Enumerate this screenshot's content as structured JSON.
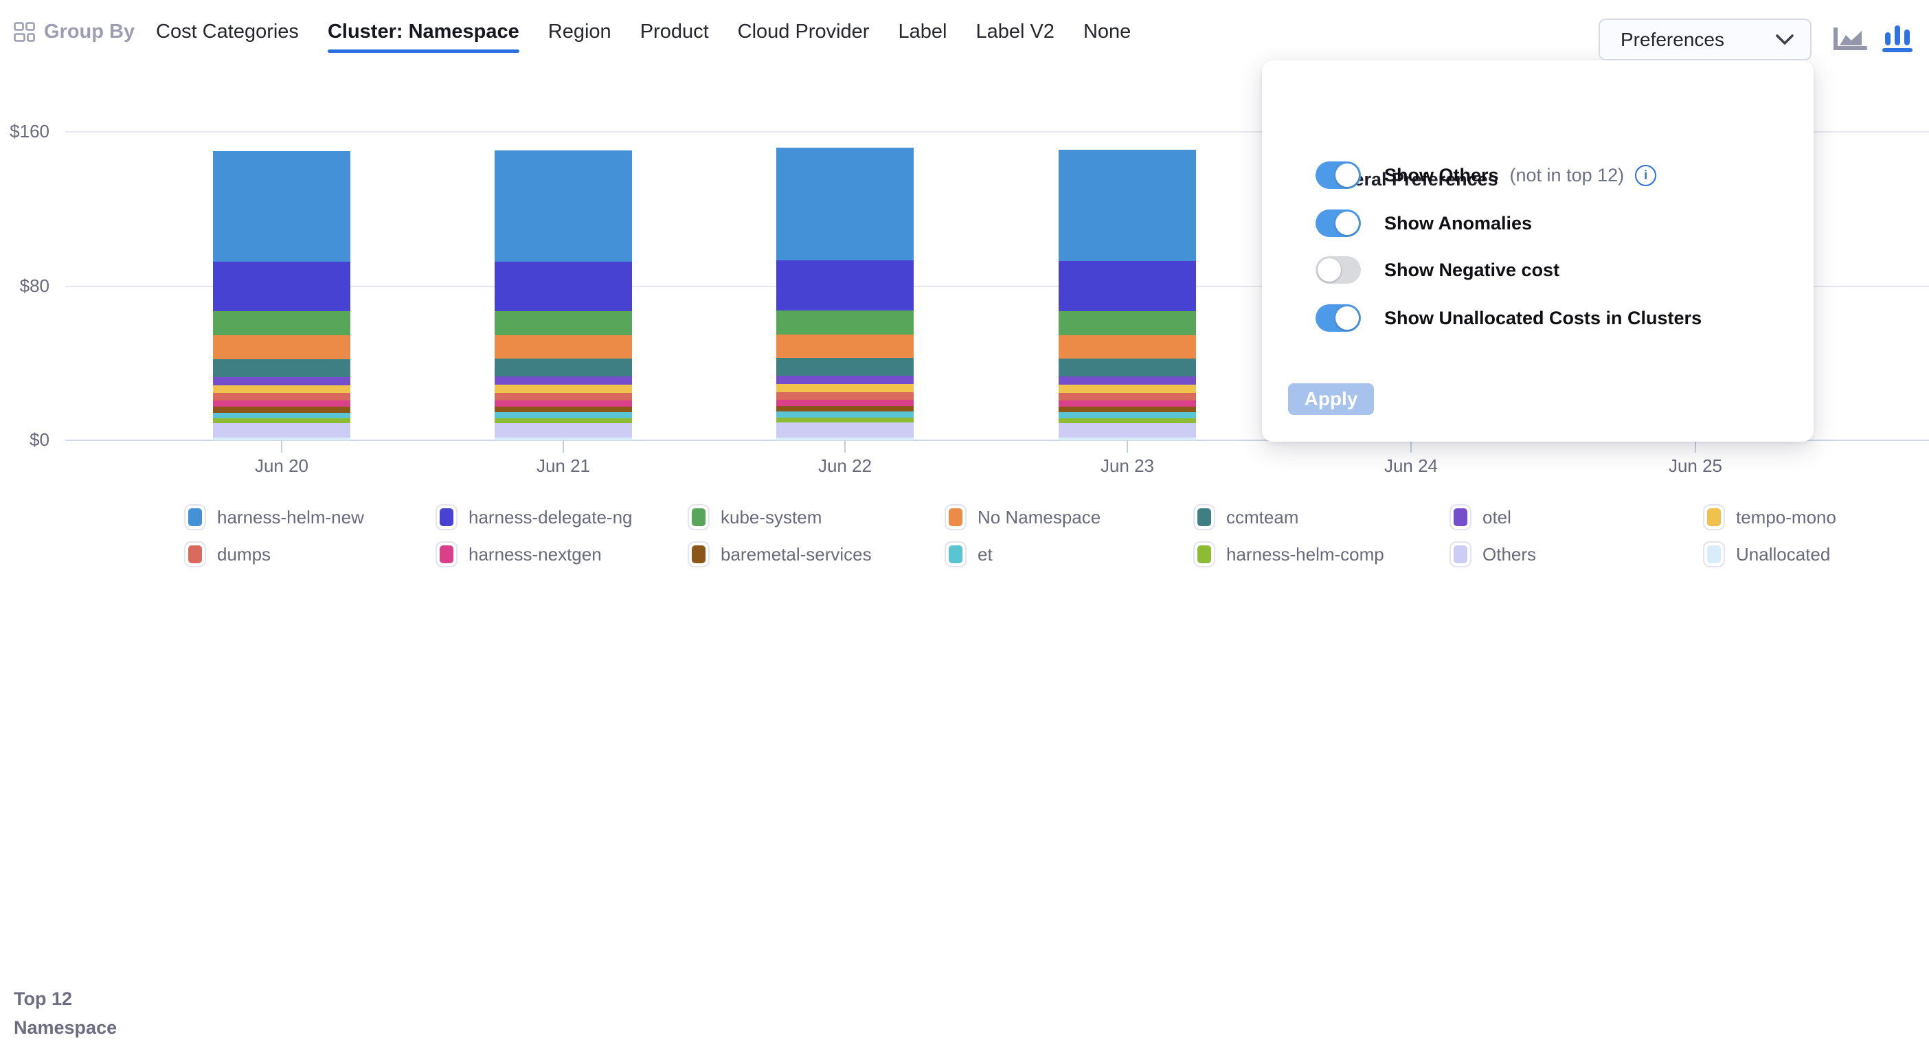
{
  "header": {
    "group_by_label": "Group By",
    "tabs": [
      {
        "label": "Cost Categories",
        "active": false
      },
      {
        "label": "Cluster: Namespace",
        "active": true
      },
      {
        "label": "Region",
        "active": false
      },
      {
        "label": "Product",
        "active": false
      },
      {
        "label": "Cloud Provider",
        "active": false
      },
      {
        "label": "Label",
        "active": false
      },
      {
        "label": "Label V2",
        "active": false
      },
      {
        "label": "None",
        "active": false
      }
    ],
    "preferences_label": "Preferences",
    "chart_type_icons": [
      "area-chart-icon",
      "bar-chart-icon"
    ],
    "active_chart_type": "bar-chart-icon",
    "accent_color": "#2e6fe0"
  },
  "preferences_panel": {
    "title": "General Preferences",
    "toggles": [
      {
        "label": "Show Others",
        "suffix": "(not in top 12)",
        "info": true,
        "on": true
      },
      {
        "label": "Show Anomalies",
        "suffix": "",
        "info": false,
        "on": true
      },
      {
        "label": "Show Negative cost",
        "suffix": "",
        "info": false,
        "on": false
      },
      {
        "label": "Show Unallocated Costs in Clusters",
        "suffix": "",
        "info": false,
        "on": true
      }
    ],
    "apply_label": "Apply",
    "toggle_on_color": "#4d9ae9",
    "apply_color": "#a7c2ec"
  },
  "legend": {
    "title_line1": "Top 12",
    "title_line2": "Namespace"
  },
  "chart_data": {
    "type": "bar",
    "stacked": true,
    "x": [
      "Jun 20",
      "Jun 21",
      "Jun 22",
      "Jun 23",
      "Jun 24",
      "Jun 25"
    ],
    "y_tick_labels": [
      "$0",
      "$80",
      "$160"
    ],
    "y_tick_values": [
      0,
      80,
      160
    ],
    "ylim": [
      0,
      160
    ],
    "currency_prefix": "$",
    "grid": true,
    "legend_position": "bottom",
    "note": "Jun 24 and Jun 25 columns are hidden behind the open Preferences popover",
    "series": [
      {
        "name": "harness-helm-new",
        "color": "#4591d8",
        "values": [
          57.4,
          57.8,
          58.3,
          58.0,
          null,
          null
        ]
      },
      {
        "name": "harness-delegate-ng",
        "color": "#4842d3",
        "values": [
          25.6,
          25.7,
          25.9,
          25.8,
          null,
          null
        ]
      },
      {
        "name": "kube-system",
        "color": "#57a65a",
        "values": [
          12.5,
          12.4,
          12.5,
          12.5,
          null,
          null
        ]
      },
      {
        "name": "No Namespace",
        "color": "#ec8b48",
        "values": [
          12.2,
          12.3,
          12.3,
          12.3,
          null,
          null
        ]
      },
      {
        "name": "ccmteam",
        "color": "#3e7f84",
        "values": [
          9.3,
          9.2,
          9.3,
          9.2,
          null,
          null
        ]
      },
      {
        "name": "otel",
        "color": "#754ecb",
        "values": [
          4.3,
          4.3,
          4.3,
          4.3,
          null,
          null
        ]
      },
      {
        "name": "tempo-mono",
        "color": "#f0c14d",
        "values": [
          4.0,
          4.1,
          4.1,
          4.1,
          null,
          null
        ]
      },
      {
        "name": "dumps",
        "color": "#da695d",
        "values": [
          3.9,
          3.9,
          3.9,
          3.9,
          null,
          null
        ]
      },
      {
        "name": "harness-nextgen",
        "color": "#da4089",
        "values": [
          3.4,
          3.4,
          3.4,
          3.4,
          null,
          null
        ]
      },
      {
        "name": "baremetal-services",
        "color": "#8b5617",
        "values": [
          2.9,
          2.9,
          2.9,
          2.9,
          null,
          null
        ]
      },
      {
        "name": "et",
        "color": "#58c4d4",
        "values": [
          3.0,
          3.0,
          3.0,
          3.0,
          null,
          null
        ]
      },
      {
        "name": "harness-helm-comp",
        "color": "#8dbb34",
        "values": [
          2.5,
          2.5,
          2.5,
          2.5,
          null,
          null
        ]
      },
      {
        "name": "Others",
        "color": "#cdccf4",
        "values": [
          7.6,
          7.7,
          8.0,
          7.7,
          null,
          null
        ]
      },
      {
        "name": "Unallocated",
        "color": "#d8ecf9",
        "values": [
          1.3,
          1.3,
          1.3,
          1.3,
          null,
          null
        ]
      }
    ]
  }
}
